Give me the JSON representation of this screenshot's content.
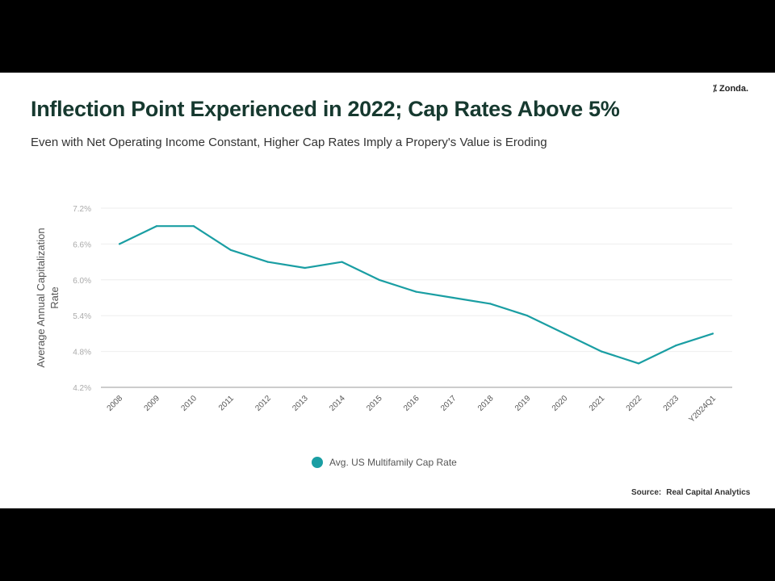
{
  "logo": {
    "text": "Zonda.",
    "icon": "zonda-slash-icon"
  },
  "header": {
    "title": "Inflection Point Experienced in 2022; Cap Rates Above 5%",
    "subtitle": "Even with Net Operating Income Constant, Higher Cap Rates Imply a Propery's  Value is Eroding"
  },
  "chart_data": {
    "type": "line",
    "title": "",
    "xlabel": "",
    "ylabel": "Average Annual Capitalization Rate",
    "categories": [
      "2008",
      "2009",
      "2010",
      "2011",
      "2012",
      "2013",
      "2014",
      "2015",
      "2016",
      "2017",
      "2018",
      "2019",
      "2020",
      "2021",
      "2022",
      "2023",
      "Y2024Q1"
    ],
    "series": [
      {
        "name": "Avg. US Multifamily Cap Rate",
        "values": [
          6.6,
          6.9,
          6.9,
          6.5,
          6.3,
          6.2,
          6.3,
          6.0,
          5.8,
          5.7,
          5.6,
          5.4,
          5.1,
          4.8,
          4.6,
          4.9,
          5.1
        ],
        "color": "#1a9ea3"
      }
    ],
    "ylim": [
      4.2,
      7.2
    ],
    "yticks": [
      "4.2%",
      "4.8%",
      "5.4%",
      "6.0%",
      "6.6%",
      "7.2%"
    ],
    "grid": true,
    "legend": "bottom"
  },
  "footer": {
    "source_label": "Source:",
    "source_value": "Real Capital Analytics"
  }
}
